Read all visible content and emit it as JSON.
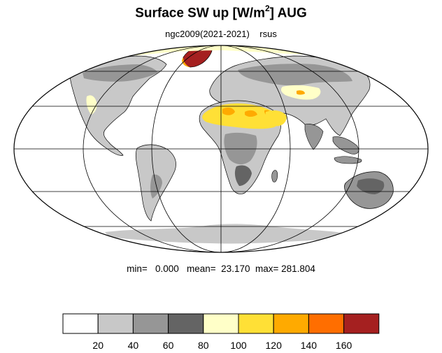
{
  "title": {
    "prefix": "Surface SW up [W/m",
    "superscript": "2",
    "suffix": "]  AUG"
  },
  "subtitle": "ngc2009(2021-2021)    rsus",
  "stats": {
    "text": "min=   0.000   mean=  23.170  max= 281.804",
    "min": 0.0,
    "mean": 23.17,
    "max": 281.804
  },
  "map": {
    "projection": "mollweide",
    "variable": "rsus",
    "units": "W/m2",
    "month": "AUG",
    "graticule": {
      "lat_lines": [
        -60,
        -30,
        0,
        30,
        60
      ],
      "lon_lines": [
        -120,
        -60,
        0,
        60,
        120
      ]
    },
    "colors": {
      "coast": "#000000",
      "land_low": "#c8c8c8",
      "land_mid": "#969696",
      "land_dark": "#646464"
    }
  },
  "colorbar": {
    "levels": [
      "20",
      "40",
      "60",
      "80",
      "100",
      "120",
      "140",
      "160"
    ],
    "colors": [
      "#ffffff",
      "#c8c8c8",
      "#969696",
      "#646464",
      "#ffffc8",
      "#ffe036",
      "#ffaa00",
      "#ff6e00",
      "#a52020"
    ]
  }
}
